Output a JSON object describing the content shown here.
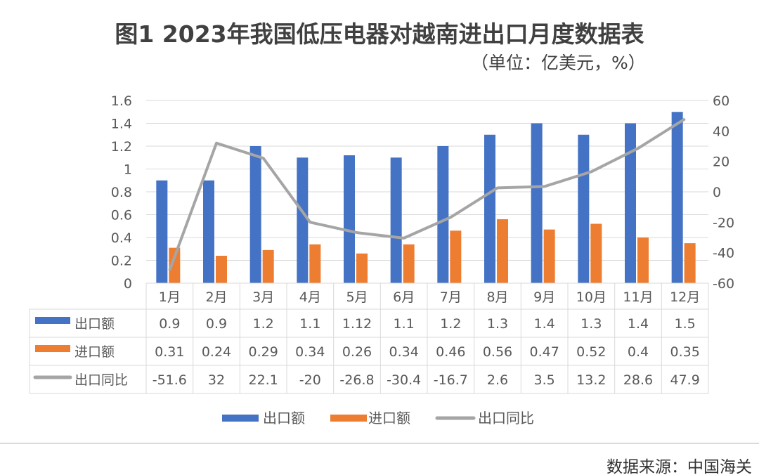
{
  "chart_data": {
    "type": "bar",
    "title": "图1  2023年我国低压电器对越南进出口月度数据表",
    "subtitle": "（单位：亿美元，%）",
    "source": "数据来源：中国海关",
    "categories": [
      "1月",
      "2月",
      "3月",
      "4月",
      "5月",
      "6月",
      "7月",
      "8月",
      "9月",
      "10月",
      "11月",
      "12月"
    ],
    "series": [
      {
        "name": "出口额",
        "type": "bar",
        "axis": "left",
        "color": "#4472c4",
        "values": [
          0.9,
          0.9,
          1.2,
          1.1,
          1.12,
          1.1,
          1.2,
          1.3,
          1.4,
          1.3,
          1.4,
          1.5
        ]
      },
      {
        "name": "进口额",
        "type": "bar",
        "axis": "left",
        "color": "#ed7d31",
        "values": [
          0.31,
          0.24,
          0.29,
          0.34,
          0.26,
          0.34,
          0.46,
          0.56,
          0.47,
          0.52,
          0.4,
          0.35
        ]
      },
      {
        "name": "出口同比",
        "type": "line",
        "axis": "right",
        "color": "#a5a5a5",
        "values": [
          -51.6,
          32,
          22.1,
          -20,
          -26.8,
          -30.4,
          -16.7,
          2.6,
          3.5,
          13.2,
          28.6,
          47.9
        ]
      }
    ],
    "ylim_left": [
      0,
      1.6
    ],
    "yticks_left": [
      "0",
      "0.2",
      "0.4",
      "0.6",
      "0.8",
      "1",
      "1.2",
      "1.4",
      "1.6"
    ],
    "ylim_right": [
      -60,
      60
    ],
    "yticks_right": [
      "-60",
      "-40",
      "-20",
      "0",
      "20",
      "40",
      "60"
    ],
    "grid": true,
    "data_table": true,
    "legend": "bottom"
  }
}
